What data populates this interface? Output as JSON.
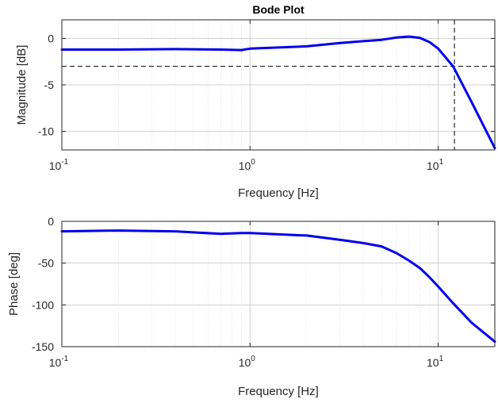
{
  "chart_data": [
    {
      "type": "line",
      "title": "Bode Plot",
      "xlabel": "Frequency [Hz]",
      "ylabel": "Magnitude [dB]",
      "xscale": "log",
      "xlim": [
        0.1,
        20
      ],
      "ylim": [
        -12,
        2
      ],
      "yticks": [
        0,
        -5,
        -10
      ],
      "xticks": [
        {
          "base": "10",
          "exp": "-1"
        },
        {
          "base": "10",
          "exp": "0"
        },
        {
          "base": "10",
          "exp": "1"
        }
      ],
      "grid": true,
      "series": [
        {
          "color": "#0000ee",
          "x": [
            0.1,
            0.2,
            0.4,
            0.7,
            0.9,
            1.0,
            2.0,
            3.0,
            4.0,
            5.0,
            6.0,
            7.0,
            8.0,
            9.0,
            10.0,
            12.0,
            15.0,
            20.0
          ],
          "y": [
            -1.2,
            -1.2,
            -1.15,
            -1.2,
            -1.25,
            -1.1,
            -0.85,
            -0.5,
            -0.3,
            -0.15,
            0.1,
            0.2,
            0.05,
            -0.4,
            -1.1,
            -3.0,
            -6.8,
            -11.8
          ]
        }
      ],
      "reference_lines": {
        "horizontal_y": -3,
        "vertical_x": 12.2
      }
    },
    {
      "type": "line",
      "title": "",
      "xlabel": "Frequency [Hz]",
      "ylabel": "Phase [deg]",
      "xscale": "log",
      "xlim": [
        0.1,
        20
      ],
      "ylim": [
        -150,
        0
      ],
      "yticks": [
        0,
        -50,
        -100,
        -150
      ],
      "xticks": [
        {
          "base": "10",
          "exp": "-1"
        },
        {
          "base": "10",
          "exp": "0"
        },
        {
          "base": "10",
          "exp": "1"
        }
      ],
      "grid": true,
      "series": [
        {
          "color": "#0000ee",
          "x": [
            0.1,
            0.2,
            0.4,
            0.7,
            0.9,
            1.0,
            2.0,
            3.0,
            4.0,
            5.0,
            6.0,
            7.0,
            8.0,
            9.0,
            10.0,
            12.0,
            15.0,
            20.0
          ],
          "y": [
            -12,
            -11,
            -12,
            -15,
            -14,
            -14,
            -17,
            -22,
            -26,
            -30,
            -38,
            -47,
            -56,
            -67,
            -78,
            -98,
            -121,
            -144
          ]
        }
      ]
    }
  ]
}
